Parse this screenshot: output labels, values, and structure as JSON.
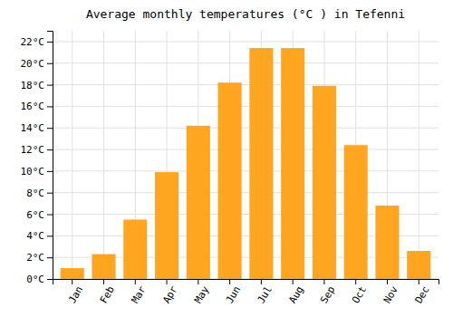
{
  "chart_data": {
    "type": "bar",
    "title": "Average monthly temperatures (°C ) in Tefenni",
    "categories": [
      "Jan",
      "Feb",
      "Mar",
      "Apr",
      "May",
      "Jun",
      "Jul",
      "Aug",
      "Sep",
      "Oct",
      "Nov",
      "Dec"
    ],
    "values": [
      1.0,
      2.3,
      5.5,
      9.9,
      14.2,
      18.2,
      21.4,
      21.4,
      17.9,
      12.4,
      6.8,
      2.6
    ],
    "color": "#FFA520",
    "ylim": [
      0,
      23
    ],
    "yticks": [
      {
        "value": 0,
        "label": "0°C"
      },
      {
        "value": 2,
        "label": "2°C"
      },
      {
        "value": 4,
        "label": "4°C"
      },
      {
        "value": 6,
        "label": "6°C"
      },
      {
        "value": 8,
        "label": "8°C"
      },
      {
        "value": 10,
        "label": "10°C"
      },
      {
        "value": 12,
        "label": "12°C"
      },
      {
        "value": 14,
        "label": "14°C"
      },
      {
        "value": 16,
        "label": "16°C"
      },
      {
        "value": 18,
        "label": "18°C"
      },
      {
        "value": 20,
        "label": "20°C"
      },
      {
        "value": 22,
        "label": "22°C"
      }
    ],
    "grid": true
  }
}
